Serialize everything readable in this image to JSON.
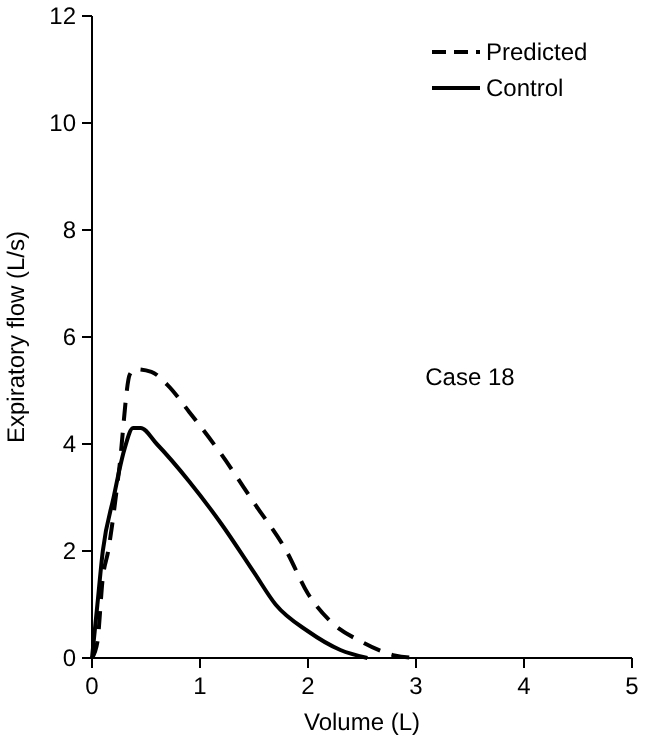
{
  "chart_data": {
    "type": "line",
    "xlabel": "Volume (L)",
    "ylabel": "Expiratory flow (L/s)",
    "xlim": [
      0,
      5
    ],
    "ylim": [
      0,
      12
    ],
    "xticks": [
      0,
      1,
      2,
      3,
      4,
      5
    ],
    "yticks": [
      0,
      2,
      4,
      6,
      8,
      10,
      12
    ],
    "legend": "top right",
    "marker": "none",
    "annotations": [
      "Case 18"
    ],
    "series": [
      {
        "name": "Predicted",
        "color": "#000000",
        "line_style": "dashed",
        "x": [
          0,
          0.05,
          0.1,
          0.15,
          0.25,
          0.35,
          0.4,
          0.55,
          0.7,
          0.9,
          1.2,
          1.5,
          1.8,
          2.0,
          2.2,
          2.5,
          2.8,
          3.0
        ],
        "values": [
          0,
          0.3,
          1.5,
          2.0,
          3.5,
          5.3,
          5.4,
          5.35,
          5.1,
          4.6,
          3.8,
          2.9,
          2.0,
          1.2,
          0.7,
          0.3,
          0.05,
          0
        ]
      },
      {
        "name": "Control",
        "color": "#000000",
        "line_style": "solid",
        "x": [
          0,
          0.05,
          0.1,
          0.2,
          0.3,
          0.38,
          0.45,
          0.6,
          0.9,
          1.2,
          1.5,
          1.7,
          2.0,
          2.3,
          2.55
        ],
        "values": [
          0,
          1.0,
          2.0,
          3.0,
          3.9,
          4.3,
          4.3,
          4.0,
          3.3,
          2.5,
          1.6,
          1.0,
          0.5,
          0.15,
          0
        ]
      }
    ]
  }
}
